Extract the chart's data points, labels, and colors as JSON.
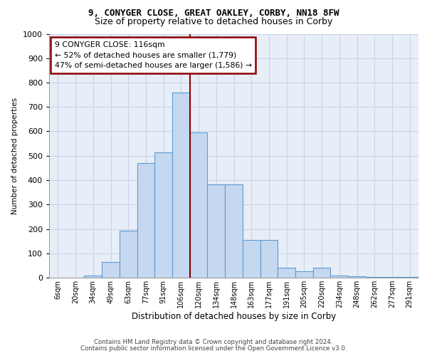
{
  "title_line1": "9, CONYGER CLOSE, GREAT OAKLEY, CORBY, NN18 8FW",
  "title_line2": "Size of property relative to detached houses in Corby",
  "xlabel": "Distribution of detached houses by size in Corby",
  "ylabel": "Number of detached properties",
  "footer_line1": "Contains HM Land Registry data © Crown copyright and database right 2024.",
  "footer_line2": "Contains public sector information licensed under the Open Government Licence v3.0.",
  "annotation_title": "9 CONYGER CLOSE: 116sqm",
  "annotation_line2": "← 52% of detached houses are smaller (1,779)",
  "annotation_line3": "47% of semi-detached houses are larger (1,586) →",
  "bar_color": "#c5d8ef",
  "bar_edge_color": "#5b9bd5",
  "categories": [
    "6sqm",
    "20sqm",
    "34sqm",
    "49sqm",
    "63sqm",
    "77sqm",
    "91sqm",
    "106sqm",
    "120sqm",
    "134sqm",
    "148sqm",
    "163sqm",
    "177sqm",
    "191sqm",
    "205sqm",
    "220sqm",
    "234sqm",
    "248sqm",
    "262sqm",
    "277sqm",
    "291sqm"
  ],
  "values": [
    0,
    0,
    10,
    65,
    193,
    470,
    515,
    760,
    595,
    383,
    383,
    155,
    155,
    42,
    25,
    42,
    10,
    5,
    3,
    2,
    2
  ],
  "ylim": [
    0,
    1000
  ],
  "yticks": [
    0,
    100,
    200,
    300,
    400,
    500,
    600,
    700,
    800,
    900,
    1000
  ],
  "property_line_idx": 7,
  "property_line_color": "#8b0000",
  "annotation_box_edgecolor": "#8b0000",
  "background_color": "#e8eef7",
  "grid_color": "#d0d8e8"
}
